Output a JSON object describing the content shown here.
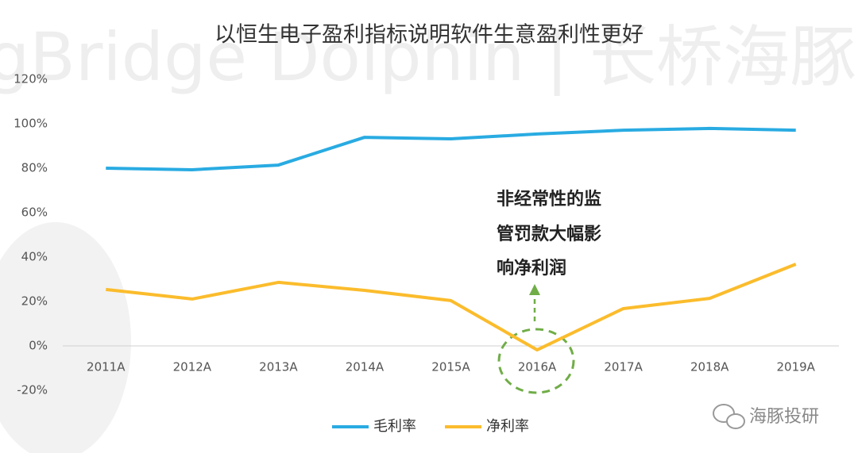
{
  "chart_data": {
    "type": "line",
    "title": "以恒生电子盈利指标说明软件生意盈利性更好",
    "categories": [
      "2011A",
      "2012A",
      "2013A",
      "2014A",
      "2015A",
      "2016A",
      "2017A",
      "2018A",
      "2019A"
    ],
    "series": [
      {
        "name": "毛利率",
        "color": "#29abe2",
        "values": [
          80,
          79.3,
          81.4,
          93.9,
          93.2,
          95.4,
          97.1,
          97.9,
          97.1
        ]
      },
      {
        "name": "净利率",
        "color": "#fbbc2c",
        "values": [
          25.4,
          21.1,
          28.6,
          25,
          20.4,
          -1.8,
          16.8,
          21.4,
          36.8
        ]
      }
    ],
    "ylim": [
      -20,
      120
    ],
    "yticks": [
      {
        "value": -20,
        "label": "-20%"
      },
      {
        "value": 0,
        "label": "0%"
      },
      {
        "value": 20,
        "label": "20%"
      },
      {
        "value": 40,
        "label": "40%"
      },
      {
        "value": 60,
        "label": "60%"
      },
      {
        "value": 80,
        "label": "80%"
      },
      {
        "value": 100,
        "label": "100%"
      },
      {
        "value": 120,
        "label": "120%"
      }
    ],
    "grid": false,
    "legend": "bottom",
    "annotation": [
      "非经常性的监",
      "管罚款大幅影",
      "响净利润"
    ]
  },
  "watermark": "LongBridge Dolphin | 长桥海豚投研",
  "logo_text": "海豚投研"
}
